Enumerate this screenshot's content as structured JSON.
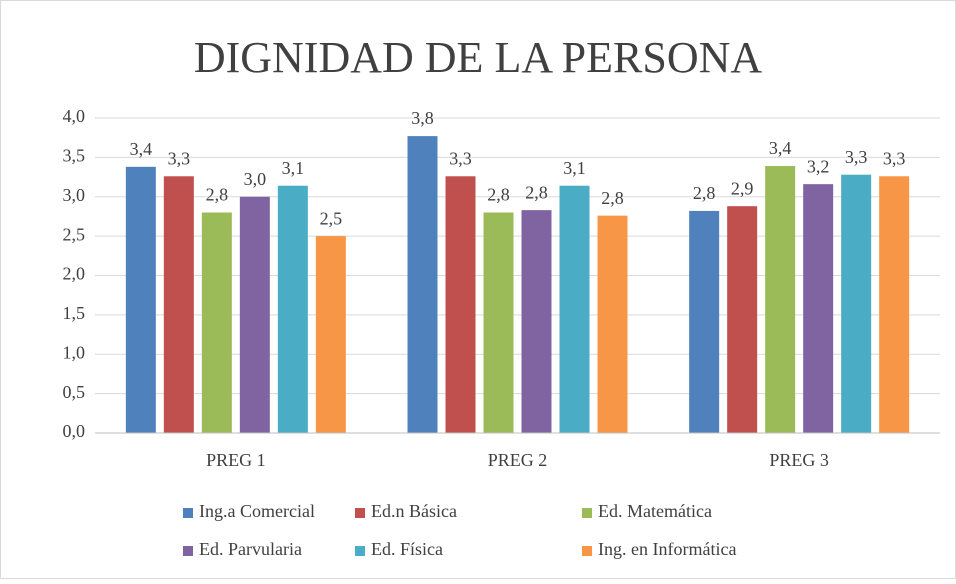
{
  "chart_data": {
    "type": "bar",
    "title": "DIGNIDAD DE LA PERSONA",
    "categories": [
      "PREG 1",
      "PREG 2",
      "PREG 3"
    ],
    "series": [
      {
        "name": "Ing.a Comercial",
        "color": "#4f81bd",
        "values": [
          3.38,
          3.77,
          2.82
        ],
        "value_labels": [
          "3,4",
          "3,8",
          "2,8"
        ]
      },
      {
        "name": "Ed.n Básica",
        "color": "#c0504d",
        "values": [
          3.26,
          3.26,
          2.88
        ],
        "value_labels": [
          "3,3",
          "3,3",
          "2,9"
        ]
      },
      {
        "name": "Ed. Matemática",
        "color": "#9bbb59",
        "values": [
          2.8,
          2.8,
          3.39
        ],
        "value_labels": [
          "2,8",
          "2,8",
          "3,4"
        ]
      },
      {
        "name": "Ed. Parvularia",
        "color": "#8064a2",
        "values": [
          3.0,
          2.83,
          3.16
        ],
        "value_labels": [
          "3,0",
          "2,8",
          "3,2"
        ]
      },
      {
        "name": "Ed. Física",
        "color": "#4bacc6",
        "values": [
          3.14,
          3.14,
          3.28
        ],
        "value_labels": [
          "3,1",
          "3,1",
          "3,3"
        ]
      },
      {
        "name": "Ing. en Informática",
        "color": "#f79646",
        "values": [
          2.5,
          2.76,
          3.26
        ],
        "value_labels": [
          "2,5",
          "2,8",
          "3,3"
        ]
      }
    ],
    "ylim": [
      0,
      4
    ],
    "yticks": [
      {
        "value": 0,
        "label": "0,0"
      },
      {
        "value": 0.5,
        "label": "0,5"
      },
      {
        "value": 1,
        "label": "1,0"
      },
      {
        "value": 1.5,
        "label": "1,5"
      },
      {
        "value": 2,
        "label": "2,0"
      },
      {
        "value": 2.5,
        "label": "2,5"
      },
      {
        "value": 3,
        "label": "3,0"
      },
      {
        "value": 3.5,
        "label": "3,5"
      },
      {
        "value": 4,
        "label": "4,0"
      }
    ],
    "grid": true,
    "legend": "bottom"
  }
}
